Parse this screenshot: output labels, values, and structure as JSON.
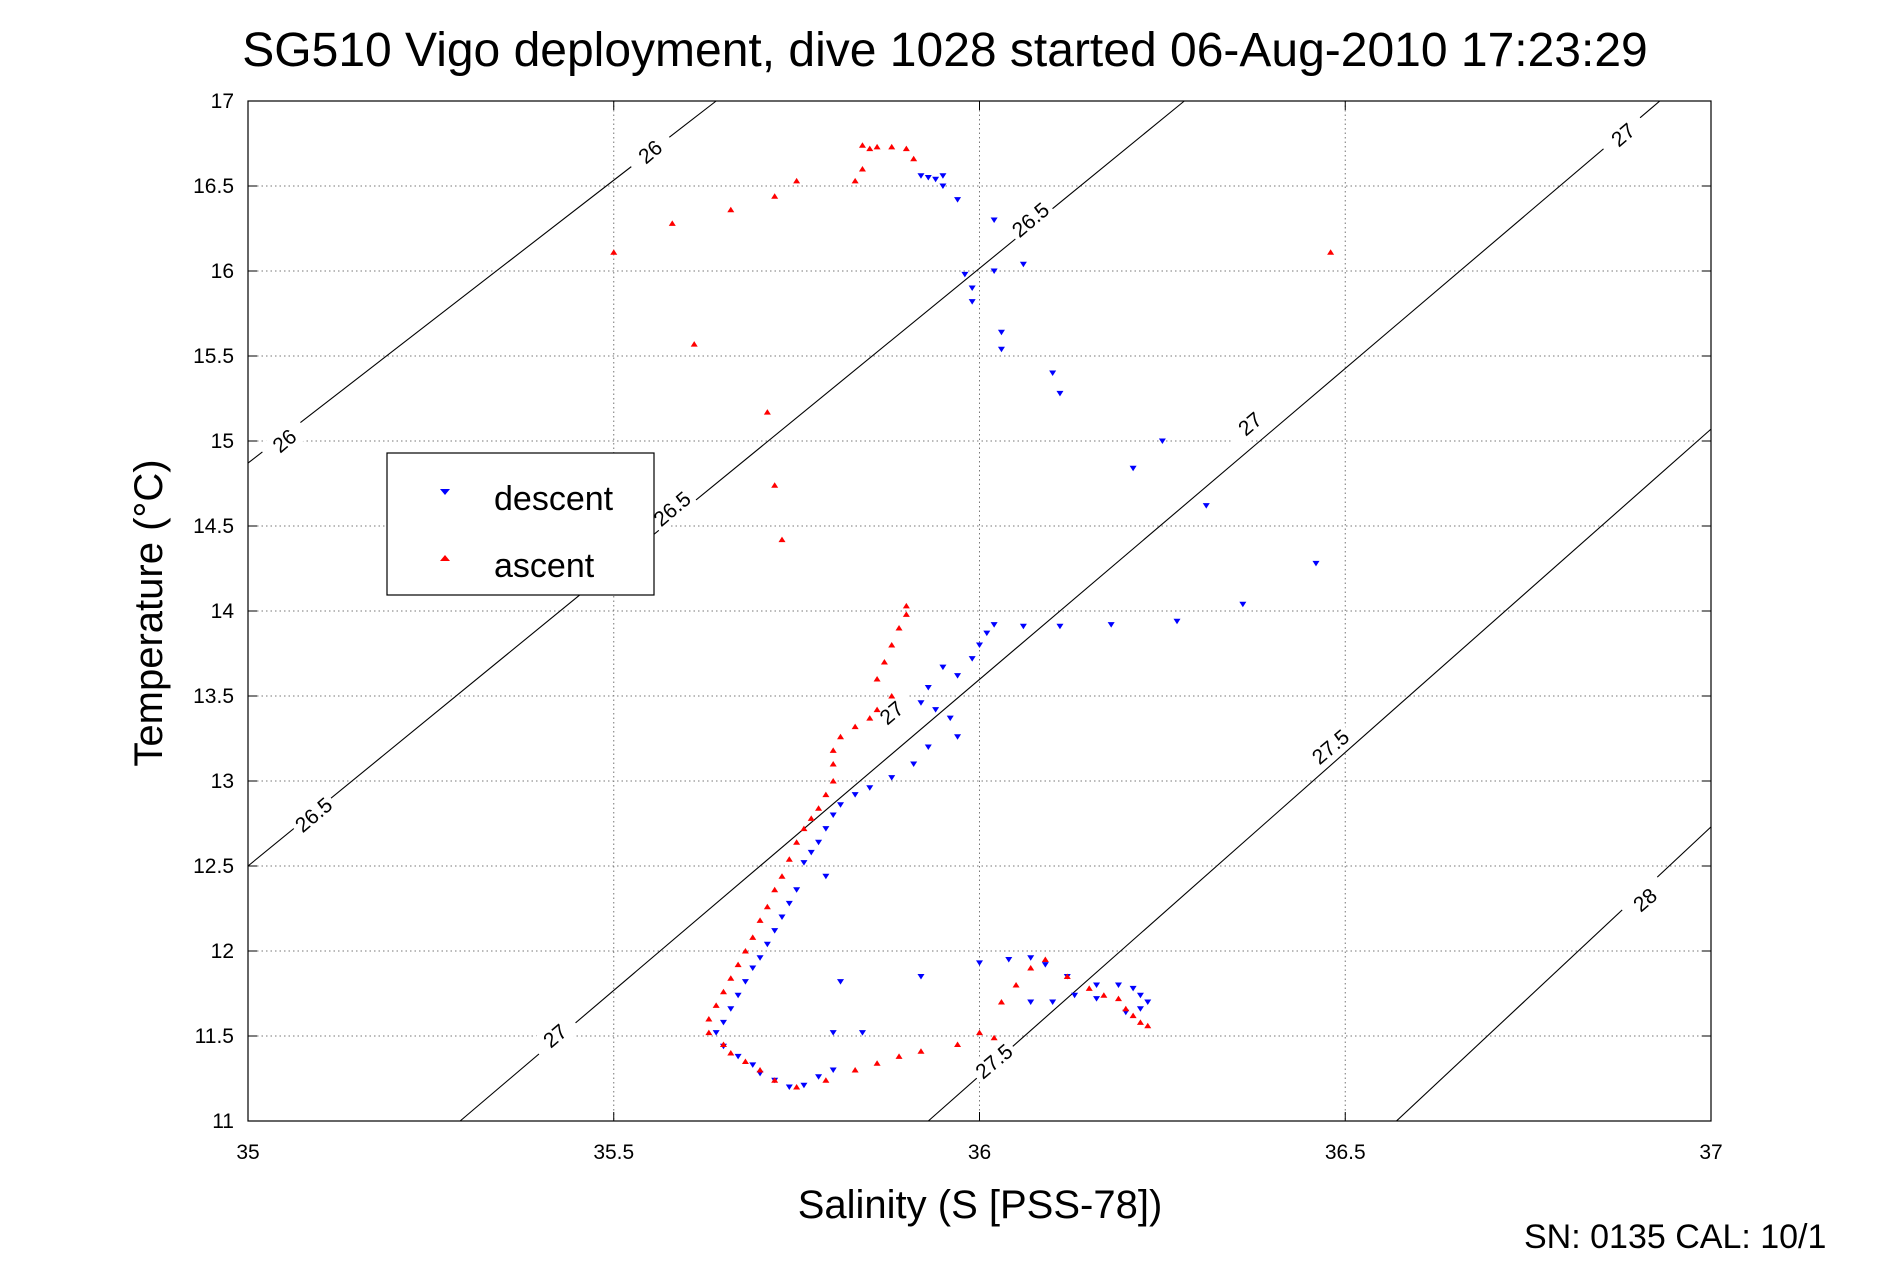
{
  "chart_data": {
    "type": "scatter",
    "title": "SG510 Vigo deployment, dive 1028 started 06-Aug-2010 17:23:29",
    "xlabel": "Salinity (S [PSS-78])",
    "ylabel": "Temperature (°C)",
    "xlim": [
      35,
      37
    ],
    "ylim": [
      11,
      17
    ],
    "x_ticks": [
      "35",
      "35.5",
      "36",
      "36.5",
      "37"
    ],
    "y_ticks": [
      "11",
      "11.5",
      "12",
      "12.5",
      "13",
      "13.5",
      "14",
      "14.5",
      "15",
      "15.5",
      "16",
      "16.5",
      "17"
    ],
    "grid": true,
    "legend_placement": "left",
    "footer": "SN: 0135  CAL: 10/1",
    "contour_lines": [
      {
        "level": "26",
        "points": [
          [
            35,
            14.87
          ],
          [
            35.64,
            17
          ]
        ]
      },
      {
        "level": "26.5",
        "points": [
          [
            35,
            12.5
          ],
          [
            36.28,
            17
          ]
        ]
      },
      {
        "level": "27",
        "points": [
          [
            35.29,
            11
          ],
          [
            36.93,
            17
          ]
        ]
      },
      {
        "level": "27.5",
        "points": [
          [
            35.93,
            11
          ],
          [
            37,
            15.07
          ]
        ]
      },
      {
        "level": "28",
        "points": [
          [
            36.57,
            11
          ],
          [
            37,
            12.73
          ]
        ]
      }
    ],
    "contour_labels": [
      {
        "text": "26",
        "x": 35.55,
        "y": 16.7
      },
      {
        "text": "26",
        "x": 35.05,
        "y": 15.0
      },
      {
        "text": "26.5",
        "x": 36.07,
        "y": 16.3
      },
      {
        "text": "26.5",
        "x": 35.58,
        "y": 14.6
      },
      {
        "text": "26.5",
        "x": 35.09,
        "y": 12.8
      },
      {
        "text": "27",
        "x": 36.88,
        "y": 16.8
      },
      {
        "text": "27",
        "x": 36.37,
        "y": 15.1
      },
      {
        "text": "27",
        "x": 35.88,
        "y": 13.4
      },
      {
        "text": "27",
        "x": 35.42,
        "y": 11.5
      },
      {
        "text": "27.5",
        "x": 36.48,
        "y": 13.2
      },
      {
        "text": "27.5",
        "x": 36.02,
        "y": 11.35
      },
      {
        "text": "28",
        "x": 36.91,
        "y": 12.3
      }
    ],
    "series": [
      {
        "name": "descent",
        "color": "#0000ff",
        "marker": "triangle-down",
        "points": [
          [
            35.92,
            16.56
          ],
          [
            35.93,
            16.55
          ],
          [
            35.94,
            16.54
          ],
          [
            35.95,
            16.56
          ],
          [
            35.95,
            16.5
          ],
          [
            35.97,
            16.42
          ],
          [
            36.02,
            16.3
          ],
          [
            36.06,
            16.04
          ],
          [
            36.02,
            16.0
          ],
          [
            35.98,
            15.98
          ],
          [
            35.99,
            15.9
          ],
          [
            35.99,
            15.82
          ],
          [
            36.03,
            15.64
          ],
          [
            36.03,
            15.54
          ],
          [
            36.1,
            15.4
          ],
          [
            36.11,
            15.28
          ],
          [
            36.25,
            15.0
          ],
          [
            36.21,
            14.84
          ],
          [
            36.31,
            14.62
          ],
          [
            36.46,
            14.28
          ],
          [
            36.36,
            14.04
          ],
          [
            36.27,
            13.94
          ],
          [
            36.18,
            13.92
          ],
          [
            36.11,
            13.91
          ],
          [
            36.06,
            13.91
          ],
          [
            36.02,
            13.92
          ],
          [
            36.01,
            13.87
          ],
          [
            36.0,
            13.8
          ],
          [
            35.99,
            13.72
          ],
          [
            35.97,
            13.62
          ],
          [
            35.95,
            13.67
          ],
          [
            35.93,
            13.55
          ],
          [
            35.92,
            13.46
          ],
          [
            35.94,
            13.42
          ],
          [
            35.96,
            13.37
          ],
          [
            35.97,
            13.26
          ],
          [
            35.93,
            13.2
          ],
          [
            35.91,
            13.1
          ],
          [
            35.88,
            13.02
          ],
          [
            35.85,
            12.96
          ],
          [
            35.83,
            12.92
          ],
          [
            35.81,
            12.86
          ],
          [
            35.8,
            12.8
          ],
          [
            35.79,
            12.72
          ],
          [
            35.78,
            12.64
          ],
          [
            35.77,
            12.58
          ],
          [
            35.76,
            12.52
          ],
          [
            35.79,
            12.44
          ],
          [
            35.75,
            12.36
          ],
          [
            35.74,
            12.28
          ],
          [
            35.73,
            12.2
          ],
          [
            35.72,
            12.12
          ],
          [
            35.71,
            12.04
          ],
          [
            35.7,
            11.96
          ],
          [
            35.69,
            11.9
          ],
          [
            35.68,
            11.82
          ],
          [
            35.67,
            11.74
          ],
          [
            35.66,
            11.66
          ],
          [
            35.65,
            11.58
          ],
          [
            35.64,
            11.52
          ],
          [
            35.65,
            11.44
          ],
          [
            35.67,
            11.38
          ],
          [
            35.69,
            11.33
          ],
          [
            35.7,
            11.28
          ],
          [
            35.72,
            11.24
          ],
          [
            35.74,
            11.2
          ],
          [
            35.76,
            11.21
          ],
          [
            35.78,
            11.26
          ],
          [
            35.8,
            11.3
          ],
          [
            35.84,
            11.52
          ],
          [
            35.8,
            11.52
          ],
          [
            35.81,
            11.82
          ],
          [
            35.92,
            11.85
          ],
          [
            36.0,
            11.93
          ],
          [
            36.04,
            11.95
          ],
          [
            36.07,
            11.96
          ],
          [
            36.09,
            11.92
          ],
          [
            36.12,
            11.85
          ],
          [
            36.16,
            11.8
          ],
          [
            36.19,
            11.8
          ],
          [
            36.21,
            11.78
          ],
          [
            36.22,
            11.74
          ],
          [
            36.23,
            11.7
          ],
          [
            36.22,
            11.66
          ],
          [
            36.2,
            11.64
          ],
          [
            36.16,
            11.72
          ],
          [
            36.13,
            11.74
          ],
          [
            36.1,
            11.7
          ],
          [
            36.07,
            11.7
          ]
        ]
      },
      {
        "name": "ascent",
        "color": "#ff0000",
        "marker": "triangle-up",
        "points": [
          [
            35.5,
            16.11
          ],
          [
            35.58,
            16.28
          ],
          [
            35.66,
            16.36
          ],
          [
            35.72,
            16.44
          ],
          [
            35.75,
            16.53
          ],
          [
            35.83,
            16.53
          ],
          [
            35.84,
            16.6
          ],
          [
            35.85,
            16.72
          ],
          [
            35.84,
            16.74
          ],
          [
            35.86,
            16.73
          ],
          [
            35.88,
            16.73
          ],
          [
            35.9,
            16.72
          ],
          [
            35.91,
            16.66
          ],
          [
            36.48,
            16.11
          ],
          [
            35.61,
            15.57
          ],
          [
            35.71,
            15.17
          ],
          [
            35.72,
            14.74
          ],
          [
            35.73,
            14.42
          ],
          [
            35.9,
            14.03
          ],
          [
            35.9,
            13.98
          ],
          [
            35.89,
            13.9
          ],
          [
            35.88,
            13.8
          ],
          [
            35.87,
            13.7
          ],
          [
            35.86,
            13.6
          ],
          [
            35.88,
            13.5
          ],
          [
            35.86,
            13.42
          ],
          [
            35.85,
            13.37
          ],
          [
            35.83,
            13.32
          ],
          [
            35.81,
            13.26
          ],
          [
            35.8,
            13.18
          ],
          [
            35.8,
            13.1
          ],
          [
            35.8,
            13.0
          ],
          [
            35.79,
            12.92
          ],
          [
            35.78,
            12.84
          ],
          [
            35.77,
            12.78
          ],
          [
            35.76,
            12.72
          ],
          [
            35.75,
            12.64
          ],
          [
            35.74,
            12.54
          ],
          [
            35.73,
            12.44
          ],
          [
            35.72,
            12.36
          ],
          [
            35.71,
            12.26
          ],
          [
            35.7,
            12.18
          ],
          [
            35.69,
            12.08
          ],
          [
            35.68,
            12.0
          ],
          [
            35.67,
            11.92
          ],
          [
            35.66,
            11.84
          ],
          [
            35.65,
            11.76
          ],
          [
            35.64,
            11.68
          ],
          [
            35.63,
            11.6
          ],
          [
            35.63,
            11.52
          ],
          [
            35.65,
            11.45
          ],
          [
            35.66,
            11.4
          ],
          [
            35.68,
            11.35
          ],
          [
            35.7,
            11.3
          ],
          [
            35.72,
            11.24
          ],
          [
            35.75,
            11.2
          ],
          [
            35.79,
            11.24
          ],
          [
            35.83,
            11.3
          ],
          [
            35.86,
            11.34
          ],
          [
            35.89,
            11.38
          ],
          [
            35.92,
            11.41
          ],
          [
            35.97,
            11.45
          ],
          [
            36.02,
            11.49
          ],
          [
            36.03,
            11.7
          ],
          [
            36.05,
            11.8
          ],
          [
            36.07,
            11.9
          ],
          [
            36.09,
            11.95
          ],
          [
            36.12,
            11.85
          ],
          [
            36.15,
            11.78
          ],
          [
            36.17,
            11.74
          ],
          [
            36.19,
            11.72
          ],
          [
            36.2,
            11.66
          ],
          [
            36.21,
            11.62
          ],
          [
            36.22,
            11.58
          ],
          [
            36.23,
            11.56
          ],
          [
            36.0,
            11.52
          ]
        ]
      }
    ]
  }
}
